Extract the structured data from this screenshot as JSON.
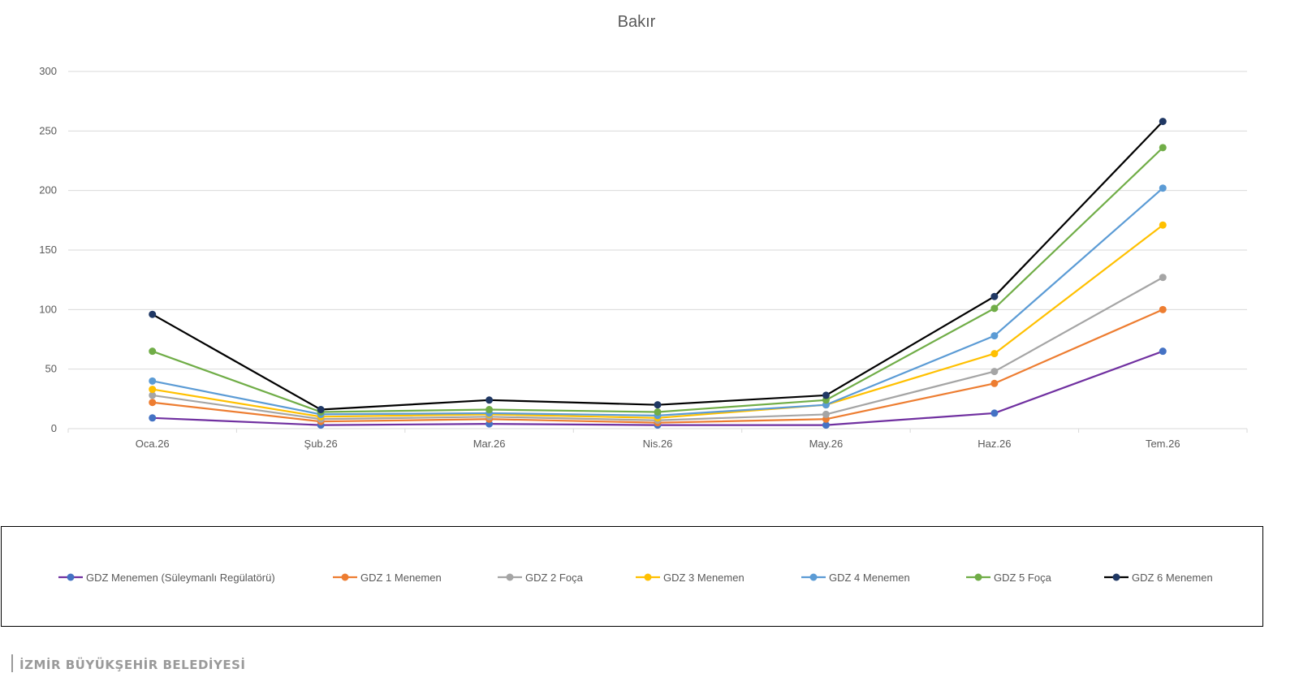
{
  "chart_data": {
    "type": "line",
    "title": "Bakır",
    "xlabel": "",
    "ylabel": "",
    "categories": [
      "Oca.26",
      "Şub.26",
      "Mar.26",
      "Nis.26",
      "May.26",
      "Haz.26",
      "Tem.26"
    ],
    "ylim": [
      0,
      300
    ],
    "yticks": [
      0,
      50,
      100,
      150,
      200,
      250,
      300
    ],
    "grid": true,
    "legend_position": "bottom",
    "series": [
      {
        "name": "GDZ Menemen (Süleymanlı Regülatörü)",
        "line_color": "#7030a0",
        "marker_color": "#4472c4",
        "values": [
          9,
          3,
          4,
          3,
          3,
          13,
          65
        ]
      },
      {
        "name": "GDZ 1 Menemen",
        "line_color": "#ed7d31",
        "marker_color": "#ed7d31",
        "values": [
          22,
          6,
          8,
          5,
          8,
          38,
          100
        ]
      },
      {
        "name": "GDZ 2 Foça",
        "line_color": "#a5a5a5",
        "marker_color": "#a5a5a5",
        "values": [
          28,
          8,
          10,
          7,
          12,
          48,
          127
        ]
      },
      {
        "name": "GDZ 3 Menemen",
        "line_color": "#ffc000",
        "marker_color": "#ffc000",
        "values": [
          33,
          10,
          12,
          9,
          20,
          63,
          171
        ]
      },
      {
        "name": "GDZ 4 Menemen",
        "line_color": "#5b9bd5",
        "marker_color": "#5b9bd5",
        "values": [
          40,
          12,
          13,
          11,
          20,
          78,
          202
        ]
      },
      {
        "name": "GDZ 5 Foça",
        "line_color": "#70ad47",
        "marker_color": "#70ad47",
        "values": [
          65,
          14,
          16,
          14,
          24,
          101,
          236
        ]
      },
      {
        "name": "GDZ 6 Menemen",
        "line_color": "#000000",
        "marker_color": "#203864",
        "values": [
          96,
          16,
          24,
          20,
          28,
          111,
          258
        ]
      }
    ]
  },
  "watermark": {
    "text": "İZMİR BÜYÜKŞEHİR BELEDİYESİ"
  }
}
